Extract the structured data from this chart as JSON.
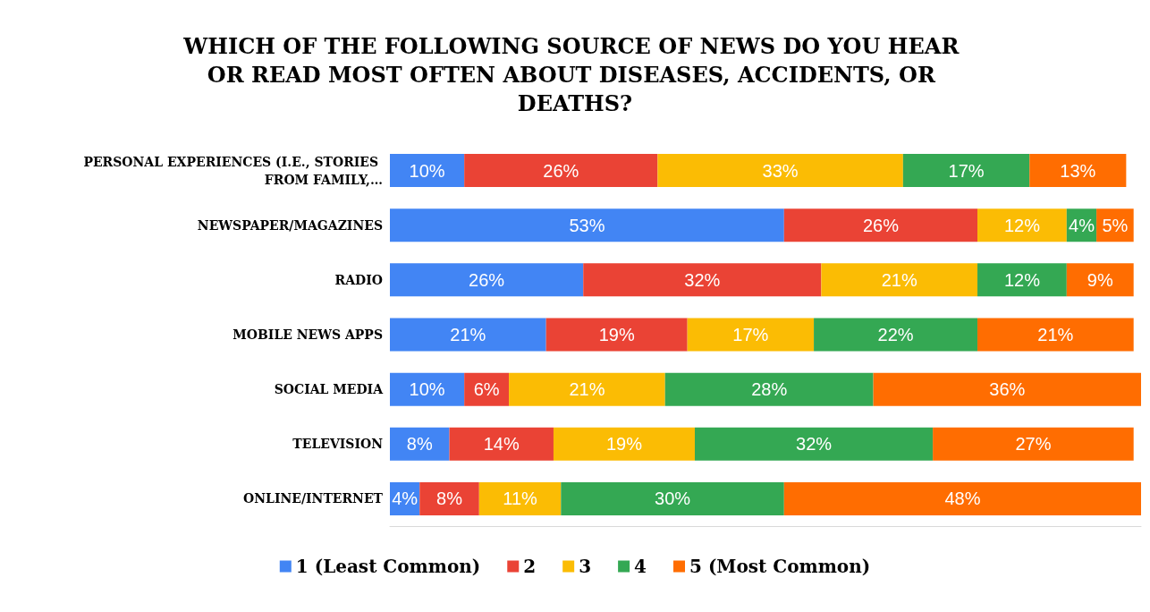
{
  "chart_data": {
    "type": "bar",
    "orientation": "horizontal",
    "stacked": true,
    "title": "WHICH OF THE FOLLOWING SOURCE OF NEWS DO YOU HEAR OR READ MOST OFTEN ABOUT DISEASES, ACCIDENTS, OR DEATHS?",
    "categories": [
      "PERSONAL EXPERIENCES (I.E., STORIES FROM FAMILY,…",
      "NEWSPAPER/MAGAZINES",
      "RADIO",
      "MOBILE NEWS APPS",
      "SOCIAL MEDIA",
      "TELEVISION",
      "ONLINE/INTERNET"
    ],
    "series": [
      {
        "name": "1 (Least Common)",
        "color": "#4285f4",
        "values": [
          10,
          53,
          26,
          21,
          10,
          8,
          4
        ],
        "value_labels": [
          "10%",
          "53%",
          "26%",
          "21%",
          "10%",
          "8%",
          "4%"
        ]
      },
      {
        "name": "2",
        "color": "#ea4335",
        "values": [
          26,
          26,
          32,
          19,
          6,
          14,
          8
        ],
        "value_labels": [
          "26%",
          "26%",
          "32%",
          "19%",
          "6%",
          "14%",
          "8%"
        ]
      },
      {
        "name": "3",
        "color": "#fbbc04",
        "values": [
          33,
          12,
          21,
          17,
          21,
          19,
          11
        ],
        "value_labels": [
          "33%",
          "12%",
          "21%",
          "17%",
          "21%",
          "19%",
          "11%"
        ]
      },
      {
        "name": "4",
        "color": "#34a853",
        "values": [
          17,
          4,
          12,
          22,
          28,
          32,
          30
        ],
        "value_labels": [
          "17%",
          "4%",
          "12%",
          "22%",
          "28%",
          "32%",
          "30%"
        ]
      },
      {
        "name": "5 (Most Common)",
        "color": "#ff6d01",
        "values": [
          13,
          5,
          9,
          21,
          36,
          27,
          48
        ],
        "value_labels": [
          "13%",
          "5%",
          "9%",
          "21%",
          "36%",
          "27%",
          "48%"
        ]
      }
    ],
    "legend": "bottom",
    "tick_labels": "y"
  }
}
